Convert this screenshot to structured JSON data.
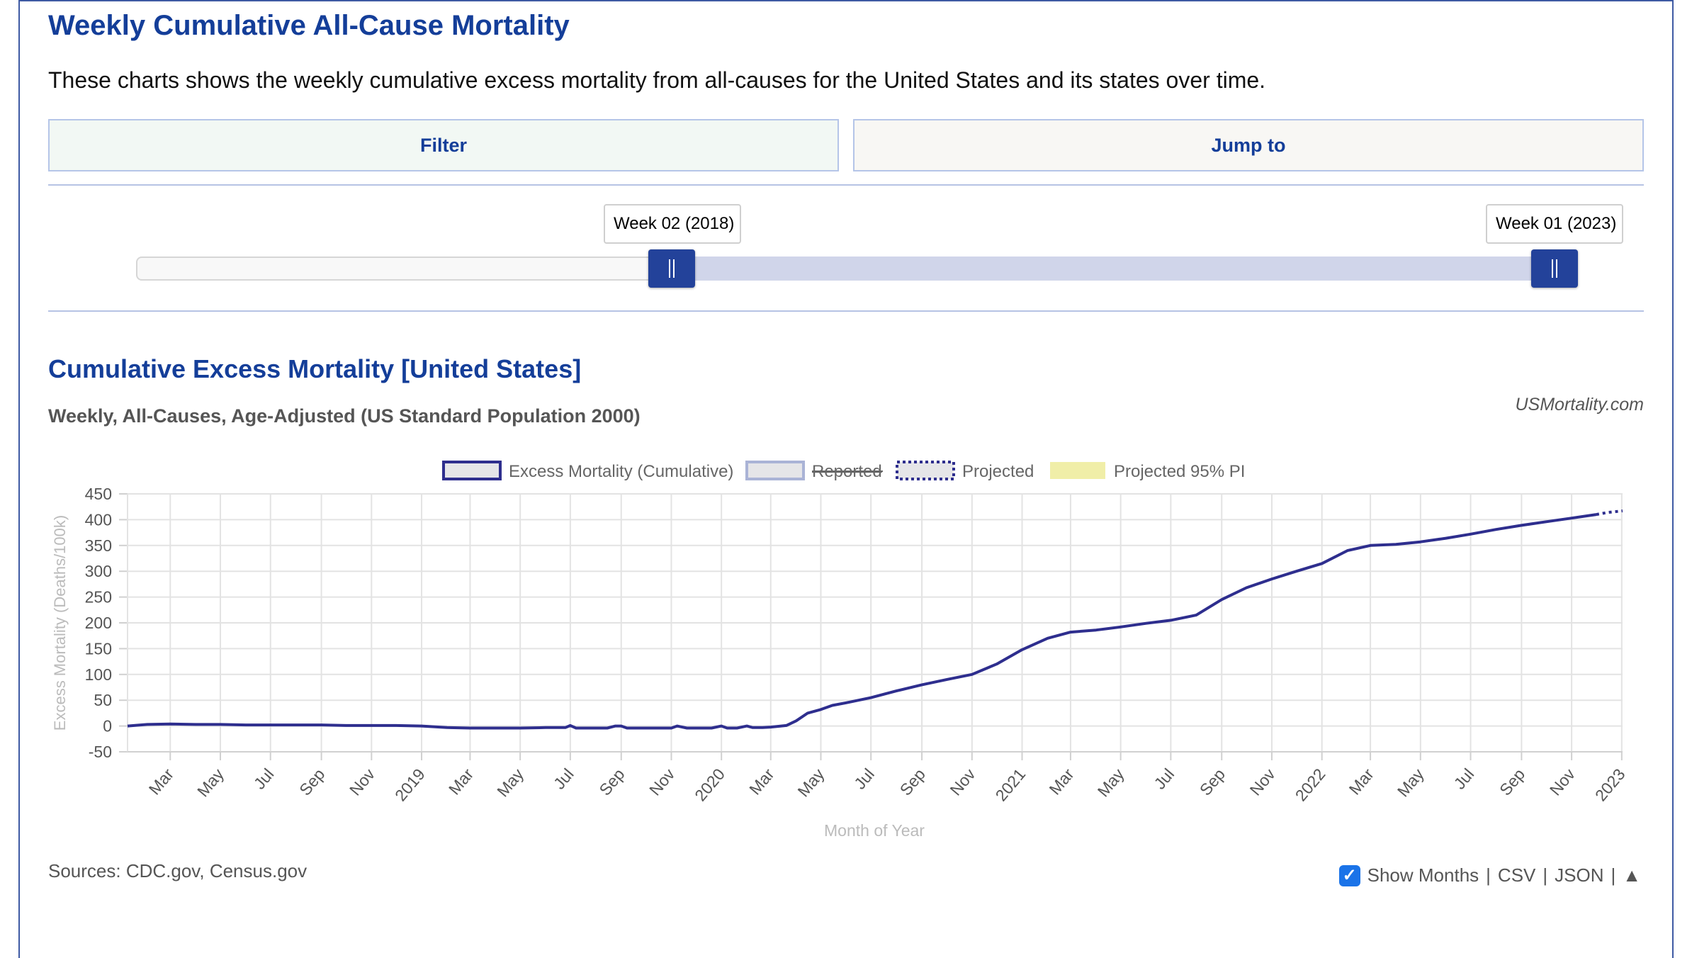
{
  "page": {
    "title": "Weekly Cumulative All-Cause Mortality",
    "description": "These charts shows the weekly cumulative excess mortality from all-causes for the United States and its states over time.",
    "filter_label": "Filter",
    "jump_label": "Jump to",
    "range_start_label": "Week 02 (2018)",
    "range_end_label": "Week 01 (2023)",
    "chart_title": "Cumulative Excess Mortality [United States]",
    "chart_subtitle": "Weekly, All-Causes, Age-Adjusted (US Standard Population 2000)",
    "credit": "USMortality.com",
    "sources": "Sources: CDC.gov, Census.gov",
    "show_months_label": "Show Months",
    "csv_label": "CSV",
    "json_label": "JSON",
    "sep": "|",
    "up_icon_glyph": "▲",
    "check_glyph": "✓"
  },
  "colors": {
    "accent": "#143e99",
    "line": "#2e2e8e",
    "reported": "#aab3d6",
    "pi": "#f0eea8",
    "checkbox": "#1a73e8"
  },
  "chart_data": {
    "type": "line",
    "title": "Cumulative Excess Mortality [United States]",
    "subtitle": "Weekly, All-Causes, Age-Adjusted (US Standard Population 2000)",
    "xlabel": "Month of Year",
    "ylabel": "Excess Mortality (Deaths/100k)",
    "ylim": [
      -50,
      450
    ],
    "yticks": [
      -50,
      0,
      50,
      100,
      150,
      200,
      250,
      300,
      350,
      400,
      450
    ],
    "xlim": [
      "2018-01-08",
      "2023-01-02"
    ],
    "x_tick_labels": [
      "Mar",
      "May",
      "Jul",
      "Sep",
      "Nov",
      "2019",
      "Mar",
      "May",
      "Jul",
      "Sep",
      "Nov",
      "2020",
      "Mar",
      "May",
      "Jul",
      "Sep",
      "Nov",
      "2021",
      "Mar",
      "May",
      "Jul",
      "Sep",
      "Nov",
      "2022",
      "Mar",
      "May",
      "Jul",
      "Sep",
      "Nov",
      "2023"
    ],
    "x_tick_dates": [
      "2018-03-01",
      "2018-05-01",
      "2018-07-01",
      "2018-09-01",
      "2018-11-01",
      "2019-01-01",
      "2019-03-01",
      "2019-05-01",
      "2019-07-01",
      "2019-09-01",
      "2019-11-01",
      "2020-01-01",
      "2020-03-01",
      "2020-05-01",
      "2020-07-01",
      "2020-09-01",
      "2020-11-01",
      "2021-01-01",
      "2021-03-01",
      "2021-05-01",
      "2021-07-01",
      "2021-09-01",
      "2021-11-01",
      "2022-01-01",
      "2022-03-01",
      "2022-05-01",
      "2022-07-01",
      "2022-09-01",
      "2022-11-01",
      "2023-01-01"
    ],
    "legend": [
      "Excess Mortality (Cumulative)",
      "Reported",
      "Projected",
      "Projected 95% PI"
    ],
    "legend_placement": "top",
    "grid": true,
    "series": [
      {
        "name": "Excess Mortality (Cumulative)",
        "x": [
          "2018-01-08",
          "2018-02-01",
          "2018-03-01",
          "2018-04-01",
          "2018-05-01",
          "2018-06-01",
          "2018-07-01",
          "2018-08-01",
          "2018-09-01",
          "2018-10-01",
          "2018-11-01",
          "2018-12-01",
          "2019-01-01",
          "2019-02-01",
          "2019-03-01",
          "2019-04-01",
          "2019-05-01",
          "2019-06-01",
          "2019-06-25",
          "2019-07-01",
          "2019-07-08",
          "2019-07-20",
          "2019-08-15",
          "2019-08-25",
          "2019-09-01",
          "2019-09-08",
          "2019-09-20",
          "2019-10-20",
          "2019-11-01",
          "2019-11-08",
          "2019-11-20",
          "2019-12-20",
          "2020-01-01",
          "2020-01-08",
          "2020-01-20",
          "2020-02-01",
          "2020-02-08",
          "2020-02-20",
          "2020-03-01",
          "2020-03-20",
          "2020-04-01",
          "2020-04-15",
          "2020-05-01",
          "2020-05-15",
          "2020-06-01",
          "2020-07-01",
          "2020-08-01",
          "2020-09-01",
          "2020-10-01",
          "2020-11-01",
          "2020-12-01",
          "2021-01-01",
          "2021-02-01",
          "2021-03-01",
          "2021-04-01",
          "2021-05-01",
          "2021-06-01",
          "2021-07-01",
          "2021-08-01",
          "2021-09-01",
          "2021-10-01",
          "2021-11-01",
          "2021-12-01",
          "2022-01-01",
          "2022-02-01",
          "2022-03-01",
          "2022-04-01",
          "2022-05-01",
          "2022-06-01",
          "2022-07-01",
          "2022-08-01",
          "2022-09-01",
          "2022-10-01",
          "2022-11-01",
          "2022-12-01"
        ],
        "y": [
          0,
          3,
          4,
          3,
          3,
          2,
          2,
          2,
          2,
          1,
          1,
          1,
          0,
          -3,
          -4,
          -4,
          -4,
          -3,
          -3,
          1,
          -4,
          -4,
          -4,
          0,
          0,
          -4,
          -4,
          -4,
          -4,
          0,
          -4,
          -4,
          0,
          -4,
          -4,
          0,
          -3,
          -3,
          -2,
          1,
          10,
          25,
          32,
          40,
          45,
          55,
          68,
          80,
          90,
          100,
          120,
          148,
          170,
          182,
          186,
          192,
          199,
          205,
          215,
          245,
          268,
          285,
          300,
          315,
          340,
          350,
          352,
          357,
          364,
          372,
          381,
          389,
          396,
          403,
          410
        ]
      },
      {
        "name": "Projected",
        "x": [
          "2022-12-01",
          "2022-12-15",
          "2023-01-02"
        ],
        "y": [
          410,
          414,
          417
        ]
      }
    ]
  }
}
